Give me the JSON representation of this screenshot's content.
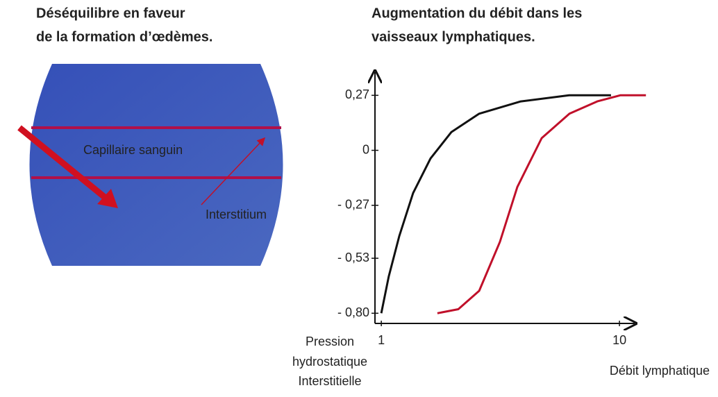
{
  "left_panel": {
    "title": [
      "Déséquilibre en faveur",
      "de la formation d’œdèmes."
    ],
    "labels": [
      "Capillaire sanguin",
      "Interstitium"
    ]
  },
  "chart_data": {
    "type": "line",
    "title": [
      "Augmentation du débit dans les",
      "vaisseaux lymphatiques."
    ],
    "y_label": [
      "Pression",
      "hydrostatique",
      "Interstitielle"
    ],
    "x_label": "Débit lymphatique",
    "xlim": [
      0.76,
      10.47
    ],
    "xticks": [
      1,
      10
    ],
    "ylim": [
      -0.85,
      0.37
    ],
    "yticks": [
      {
        "value": 0.27,
        "label": "0,27"
      },
      0,
      {
        "value": -0.27,
        "label": "- 0,27"
      },
      {
        "value": -0.53,
        "label": "- 0,53"
      },
      {
        "value": -0.8,
        "label": "- 0,80"
      }
    ],
    "series": [
      {
        "color": "#111111",
        "x": [
          1.0,
          1.28,
          1.68,
          2.2,
          2.86,
          3.65,
          4.7,
          6.27,
          8.1,
          9.68
        ],
        "values": [
          -0.8,
          -0.62,
          -0.42,
          -0.21,
          -0.04,
          0.09,
          0.18,
          0.24,
          0.27,
          0.27
        ]
      },
      {
        "color": "#c0102a",
        "x": [
          3.12,
          3.91,
          4.7,
          5.48,
          6.14,
          7.06,
          8.11,
          9.16,
          10.03,
          11.0
        ],
        "values": [
          -0.8,
          -0.78,
          -0.69,
          -0.45,
          -0.18,
          0.06,
          0.18,
          0.24,
          0.27,
          0.27
        ]
      }
    ]
  }
}
